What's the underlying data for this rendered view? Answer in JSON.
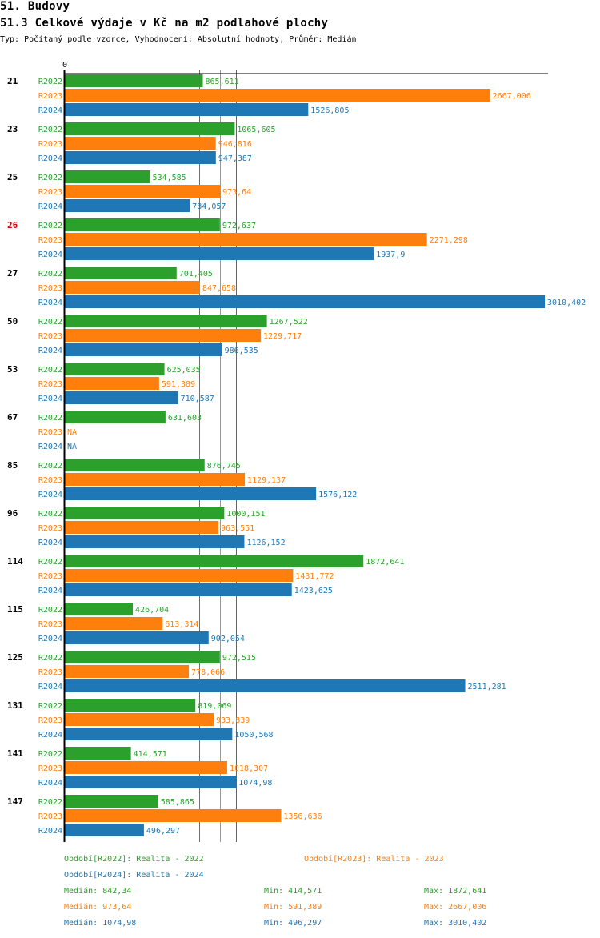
{
  "header": {
    "title": "51. Budovy",
    "subtitle": "51.3 Celkové výdaje v Kč na m2 podlahové plochy",
    "description": "Typ: Počítaný podle vzorce, Vyhodnocení: Absolutní hodnoty, Průměr: Medián"
  },
  "chart_data": {
    "type": "bar",
    "orientation": "horizontal",
    "title": "51.3 Celkové výdaje v Kč na m2 podlahové plochy",
    "xlabel": "",
    "ylabel": "",
    "xlim": [
      0,
      3010.402
    ],
    "x_tick_labels": [
      "0"
    ],
    "grid": false,
    "legend_position": "bottom",
    "highlighted_category": "26",
    "categories": [
      "21",
      "23",
      "25",
      "26",
      "27",
      "50",
      "53",
      "67",
      "85",
      "96",
      "114",
      "115",
      "125",
      "131",
      "141",
      "147"
    ],
    "series": [
      {
        "name": "R2022",
        "legend": "Období[R2022]: Realita - 2022",
        "color": "#2ca02c",
        "values": [
          865.611,
          1065.605,
          534.585,
          972.637,
          701.405,
          1267.522,
          625.035,
          631.603,
          876.745,
          1000.151,
          1872.641,
          426.704,
          972.515,
          819.069,
          414.571,
          585.865
        ],
        "labels": [
          "865,611",
          "1065,605",
          "534,585",
          "972,637",
          "701,405",
          "1267,522",
          "625,035",
          "631,603",
          "876,745",
          "1000,151",
          "1872,641",
          "426,704",
          "972,515",
          "819,069",
          "414,571",
          "585,865"
        ],
        "median": 842.34,
        "median_label": "Medián: 842,34",
        "min_label": "Min: 414,571",
        "max_label": "Max: 1872,641"
      },
      {
        "name": "R2023",
        "legend": "Období[R2023]: Realita - 2023",
        "color": "#ff7f0e",
        "values": [
          2667.006,
          946.816,
          973.64,
          2271.298,
          847.658,
          1229.717,
          591.389,
          null,
          1129.137,
          963.551,
          1431.772,
          613.314,
          778.066,
          933.839,
          1018.307,
          1356.636
        ],
        "labels": [
          "2667,006",
          "946,816",
          "973,64",
          "2271,298",
          "847,658",
          "1229,717",
          "591,389",
          "NA",
          "1129,137",
          "963,551",
          "1431,772",
          "613,314",
          "778,066",
          "933,839",
          "1018,307",
          "1356,636"
        ],
        "median": 973.64,
        "median_label": "Medián: 973,64",
        "min_label": "Min: 591,389",
        "max_label": "Max: 2667,006"
      },
      {
        "name": "R2024",
        "legend": "Období[R2024]: Realita - 2024",
        "color": "#1f77b4",
        "values": [
          1526.805,
          947.387,
          784.057,
          1937.9,
          3010.402,
          986.535,
          710.587,
          null,
          1576.122,
          1126.152,
          1423.625,
          902.054,
          2511.281,
          1050.568,
          1074.98,
          496.297
        ],
        "labels": [
          "1526,805",
          "947,387",
          "784,057",
          "1937,9",
          "3010,402",
          "986,535",
          "710,587",
          "NA",
          "1576,122",
          "1126,152",
          "1423,625",
          "902,054",
          "2511,281",
          "1050,568",
          "1074,98",
          "496,297"
        ],
        "median": 1074.98,
        "median_label": "Medián: 1074,98",
        "min_label": "Min: 496,297",
        "max_label": "Max: 3010,402"
      }
    ]
  },
  "colors": {
    "highlight": "#d40000",
    "axis": "#000000"
  }
}
